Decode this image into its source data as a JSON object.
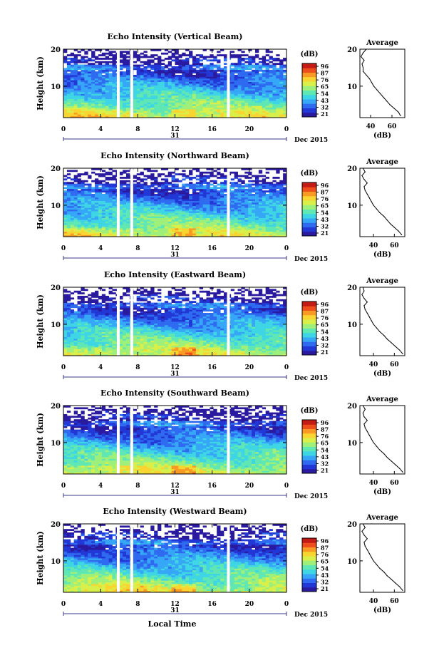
{
  "figure": {
    "x_axis_title": "Local Time",
    "y_axis_label": "Height (km)",
    "average_title": "Average",
    "colorbar_unit": "(dB)",
    "date_label": "Dec 2015",
    "day_label": "31",
    "x_ticks": [
      "0",
      "4",
      "8",
      "12",
      "16",
      "20",
      "0"
    ],
    "y_ticks": [
      "20",
      "10"
    ],
    "colorbar_ticks": [
      "96",
      "87",
      "76",
      "65",
      "54",
      "43",
      "32",
      "21"
    ],
    "colormap": [
      "#2a1aa0",
      "#2238d6",
      "#2f6bf0",
      "#36a6f6",
      "#3ed5e4",
      "#5fe7b4",
      "#9ef07a",
      "#d9f04a",
      "#f9d531",
      "#f99a24",
      "#ee4d1c",
      "#c41b14"
    ]
  },
  "chart_data": [
    {
      "type": "heatmap",
      "title": "Echo Intensity (Vertical Beam)",
      "xlim": [
        0,
        24
      ],
      "ylim": [
        1.5,
        20
      ],
      "zlim": [
        21,
        96
      ],
      "gaps_hours": [
        5.9,
        7.35,
        17.75
      ],
      "average_profile": {
        "xlabel": "(dB)",
        "x_ticks": [
          "40",
          "60"
        ],
        "xlim": [
          30,
          72
        ],
        "height_km": [
          2,
          3,
          4,
          5,
          6,
          7,
          8,
          9,
          10,
          11,
          12,
          13,
          14,
          15,
          16,
          17,
          18,
          19,
          20
        ],
        "db": [
          68,
          66,
          62,
          58,
          55,
          52,
          49,
          46,
          43,
          41,
          39,
          36,
          33,
          33,
          32,
          34,
          31,
          33,
          36
        ]
      }
    },
    {
      "type": "heatmap",
      "title": "Echo Intensity (Northward Beam)",
      "xlim": [
        0,
        24
      ],
      "ylim": [
        1.5,
        20
      ],
      "zlim": [
        21,
        96
      ],
      "gaps_hours": [
        5.9,
        7.35,
        17.75
      ],
      "average_profile": {
        "xlabel": "(dB)",
        "x_ticks": [
          "40",
          "60"
        ],
        "xlim": [
          27,
          70
        ],
        "height_km": [
          2,
          3,
          4,
          5,
          6,
          7,
          8,
          9,
          10,
          11,
          12,
          13,
          14,
          15,
          16,
          17,
          18,
          19,
          20
        ],
        "db": [
          67,
          64,
          60,
          56,
          53,
          50,
          46,
          43,
          40,
          38,
          36,
          34,
          32,
          31,
          34,
          31,
          29,
          32,
          30
        ]
      }
    },
    {
      "type": "heatmap",
      "title": "Echo Intensity (Eastward Beam)",
      "xlim": [
        0,
        24
      ],
      "ylim": [
        1.5,
        20
      ],
      "zlim": [
        21,
        96
      ],
      "gaps_hours": [
        5.9,
        7.35,
        17.75
      ],
      "average_profile": {
        "xlabel": "(dB)",
        "x_ticks": [
          "40",
          "60"
        ],
        "xlim": [
          27,
          70
        ],
        "height_km": [
          2,
          3,
          4,
          5,
          6,
          7,
          8,
          9,
          10,
          11,
          12,
          13,
          14,
          15,
          16,
          17,
          18,
          19,
          20
        ],
        "db": [
          68,
          65,
          61,
          57,
          53,
          50,
          46,
          43,
          40,
          38,
          36,
          34,
          32,
          31,
          34,
          31,
          29,
          31,
          30
        ]
      }
    },
    {
      "type": "heatmap",
      "title": "Echo Intensity (Southward Beam)",
      "xlim": [
        0,
        24
      ],
      "ylim": [
        1.5,
        20
      ],
      "zlim": [
        21,
        96
      ],
      "gaps_hours": [
        5.9,
        7.35,
        17.75
      ],
      "average_profile": {
        "xlabel": "(dB)",
        "x_ticks": [
          "40",
          "60"
        ],
        "xlim": [
          27,
          70
        ],
        "height_km": [
          2,
          3,
          4,
          5,
          6,
          7,
          8,
          9,
          10,
          11,
          12,
          13,
          14,
          15,
          16,
          17,
          18,
          19,
          20
        ],
        "db": [
          68,
          65,
          61,
          57,
          53,
          50,
          46,
          43,
          40,
          38,
          36,
          34,
          32,
          31,
          34,
          31,
          30,
          32,
          30
        ]
      }
    },
    {
      "type": "heatmap",
      "title": "Echo Intensity (Westward Beam)",
      "xlim": [
        0,
        24
      ],
      "ylim": [
        1.5,
        20
      ],
      "zlim": [
        21,
        96
      ],
      "gaps_hours": [
        5.9,
        7.35,
        17.75
      ],
      "average_profile": {
        "xlabel": "(dB)",
        "x_ticks": [
          "40",
          "60"
        ],
        "xlim": [
          27,
          70
        ],
        "height_km": [
          2,
          3,
          4,
          5,
          6,
          7,
          8,
          9,
          10,
          11,
          12,
          13,
          14,
          15,
          16,
          17,
          18,
          19,
          20
        ],
        "db": [
          68,
          65,
          61,
          57,
          53,
          50,
          46,
          43,
          40,
          38,
          36,
          34,
          32,
          31,
          34,
          31,
          29,
          32,
          30
        ]
      }
    }
  ]
}
